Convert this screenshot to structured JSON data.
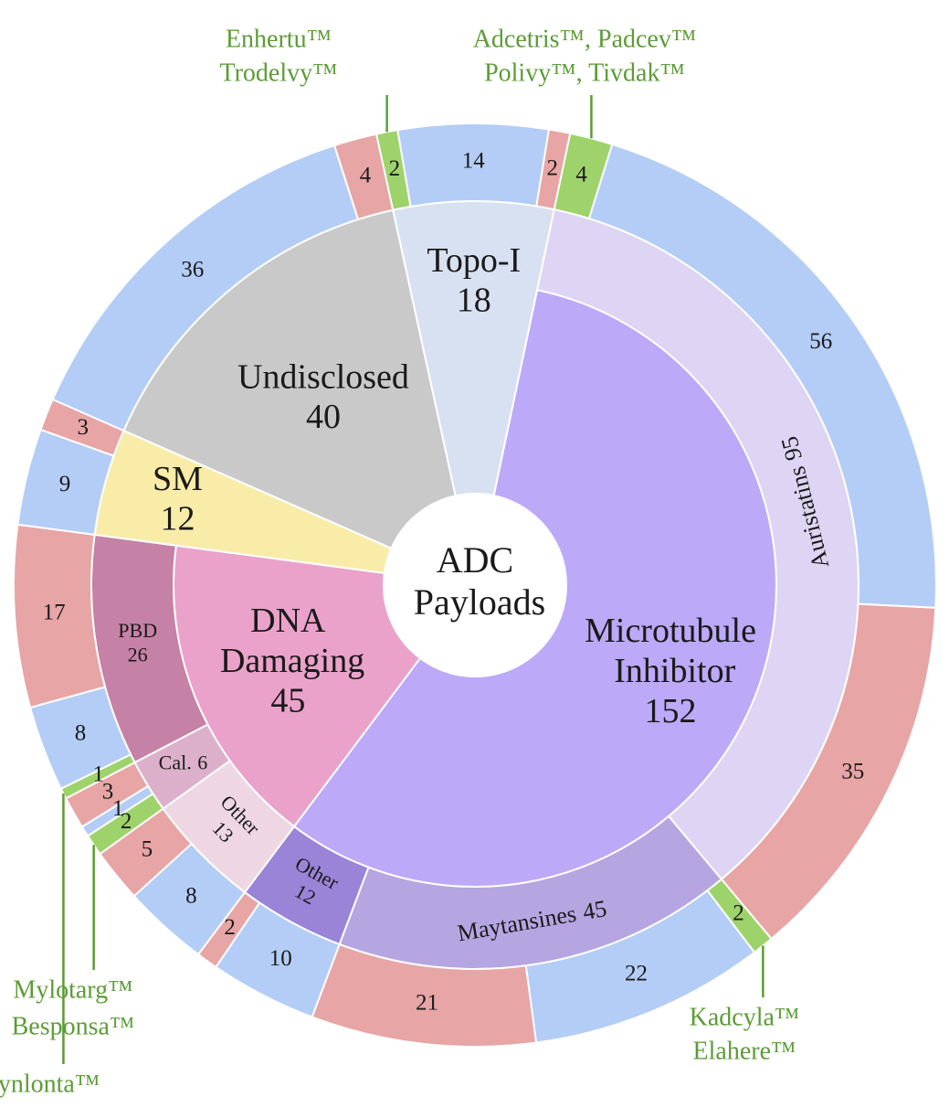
{
  "chart_data": {
    "type": "sunburst",
    "center": "ADC Payloads",
    "children": [
      {
        "name": "Topo-I",
        "value": 18,
        "color": "#d8e1f2",
        "outer": [
          {
            "value": 2,
            "color": "#9ed36b"
          },
          {
            "value": 14,
            "color": "#b4cdf6"
          },
          {
            "value": 2,
            "color": "#e8a5a5"
          }
        ]
      },
      {
        "name": "Microtubule Inhibitor",
        "value": 152,
        "color": "#bca9f8",
        "groups": [
          {
            "name": "Auristatins",
            "value": 95,
            "color": "#ddd5f3",
            "outer": [
              {
                "value": 4,
                "color": "#9ed36b"
              },
              {
                "value": 56,
                "color": "#b4cdf6"
              },
              {
                "value": 35,
                "color": "#e8a5a5"
              }
            ]
          },
          {
            "name": "Maytansines",
            "value": 45,
            "color": "#b5a6e2",
            "outer": [
              {
                "value": 2,
                "color": "#9ed36b"
              },
              {
                "value": 22,
                "color": "#b4cdf6"
              },
              {
                "value": 21,
                "color": "#e8a5a5"
              }
            ]
          },
          {
            "name": "Other",
            "value": 12,
            "color": "#9a84d8",
            "outer": [
              {
                "value": 10,
                "color": "#b4cdf6"
              },
              {
                "value": 2,
                "color": "#e8a5a5"
              }
            ]
          }
        ]
      },
      {
        "name": "DNA Damaging",
        "value": 45,
        "color": "#eaa2ca",
        "groups": [
          {
            "name": "Other",
            "value": 13,
            "color": "#eed7e3",
            "outer": [
              {
                "value": 8,
                "color": "#b4cdf6"
              },
              {
                "value": 5,
                "color": "#e8a5a5"
              }
            ]
          },
          {
            "name": "Cal.",
            "value": 6,
            "color": "#dcb0cb",
            "outer": [
              {
                "value": 2,
                "color": "#9ed36b"
              },
              {
                "value": 1,
                "color": "#b4cdf6"
              },
              {
                "value": 3,
                "color": "#e8a5a5"
              }
            ]
          },
          {
            "name": "PBD",
            "value": 26,
            "color": "#c681a6",
            "outer": [
              {
                "value": 1,
                "color": "#9ed36b"
              },
              {
                "value": 8,
                "color": "#b4cdf6"
              },
              {
                "value": 17,
                "color": "#e8a5a5"
              }
            ]
          }
        ]
      },
      {
        "name": "SM",
        "value": 12,
        "color": "#f8eca8",
        "outer": [
          {
            "value": 9,
            "color": "#b4cdf6"
          },
          {
            "value": 3,
            "color": "#e8a5a5"
          }
        ]
      },
      {
        "name": "Undisclosed",
        "value": 40,
        "color": "#c9c9c9",
        "outer": [
          {
            "value": 36,
            "color": "#b4cdf6"
          },
          {
            "value": 4,
            "color": "#e8a5a5"
          }
        ]
      }
    ],
    "annotations": [
      {
        "lines": [
          "Enhertu™",
          "Trodelvy™"
        ]
      },
      {
        "lines": [
          "Adcetris™, Padcev™",
          "Polivy™, Tivdak™"
        ]
      },
      {
        "lines": [
          "Kadcyla™",
          "Elahere™"
        ]
      },
      {
        "lines": [
          "Mylotarg™",
          "Besponsa™"
        ]
      },
      {
        "lines": [
          "Zynlonta™"
        ]
      }
    ],
    "annotation_color": "#5c9c36"
  }
}
